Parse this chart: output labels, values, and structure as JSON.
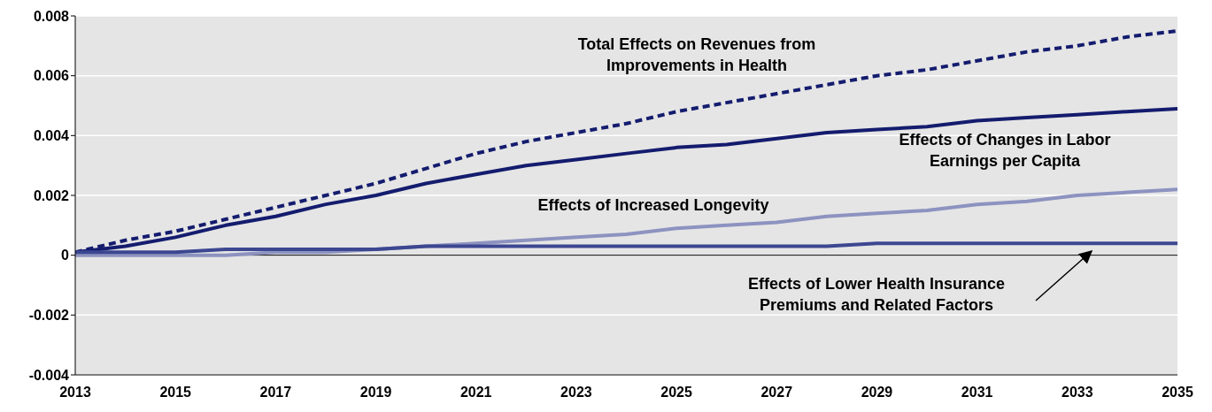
{
  "chart_data": {
    "type": "line",
    "x": [
      2013,
      2014,
      2015,
      2016,
      2017,
      2018,
      2019,
      2020,
      2021,
      2022,
      2023,
      2024,
      2025,
      2026,
      2027,
      2028,
      2029,
      2030,
      2031,
      2032,
      2033,
      2034,
      2035
    ],
    "series": [
      {
        "name": "Total Effects on Revenues from Improvements in Health",
        "color": "#141c6e",
        "line_style": "dashed",
        "values": [
          0.0001,
          0.0005,
          0.0008,
          0.0012,
          0.0016,
          0.002,
          0.0024,
          0.0029,
          0.0034,
          0.0038,
          0.0041,
          0.0044,
          0.0048,
          0.0051,
          0.0054,
          0.0057,
          0.006,
          0.0062,
          0.0065,
          0.0068,
          0.007,
          0.0073,
          0.0075
        ]
      },
      {
        "name": "Effects of Changes in Labor Earnings per Capita",
        "color": "#141c6e",
        "line_style": "solid",
        "values": [
          0.0001,
          0.0003,
          0.0006,
          0.001,
          0.0013,
          0.0017,
          0.002,
          0.0024,
          0.0027,
          0.003,
          0.0032,
          0.0034,
          0.0036,
          0.0037,
          0.0039,
          0.0041,
          0.0042,
          0.0043,
          0.0045,
          0.0046,
          0.0047,
          0.0048,
          0.0049
        ]
      },
      {
        "name": "Effects of Increased Longevity",
        "color": "#8d93c0",
        "line_style": "solid",
        "values": [
          0,
          0,
          0,
          0,
          0.0001,
          0.0001,
          0.0002,
          0.0003,
          0.0004,
          0.0005,
          0.0006,
          0.0007,
          0.0009,
          0.001,
          0.0011,
          0.0013,
          0.0014,
          0.0015,
          0.0017,
          0.0018,
          0.002,
          0.0021,
          0.0022
        ]
      },
      {
        "name": "Effects of Lower Health Insurance Premiums and Related Factors",
        "color": "#3c4791",
        "line_style": "solid",
        "values": [
          0.0001,
          0.0001,
          0.0001,
          0.0002,
          0.0002,
          0.0002,
          0.0002,
          0.0003,
          0.0003,
          0.0003,
          0.0003,
          0.0003,
          0.0003,
          0.0003,
          0.0003,
          0.0003,
          0.0004,
          0.0004,
          0.0004,
          0.0004,
          0.0004,
          0.0004,
          0.0004
        ]
      }
    ],
    "xlim": [
      2013,
      2035
    ],
    "xticks": [
      2013,
      2015,
      2017,
      2019,
      2021,
      2023,
      2025,
      2027,
      2029,
      2031,
      2033,
      2035
    ],
    "ylim": [
      -0.004,
      0.008
    ],
    "yticks": [
      -0.004,
      -0.002,
      0,
      0.002,
      0.004,
      0.006,
      0.008
    ],
    "grid": "y",
    "marker": "none",
    "ref_lines": [
      {
        "axis": "y",
        "value": 0,
        "color": "#000000"
      }
    ]
  }
}
